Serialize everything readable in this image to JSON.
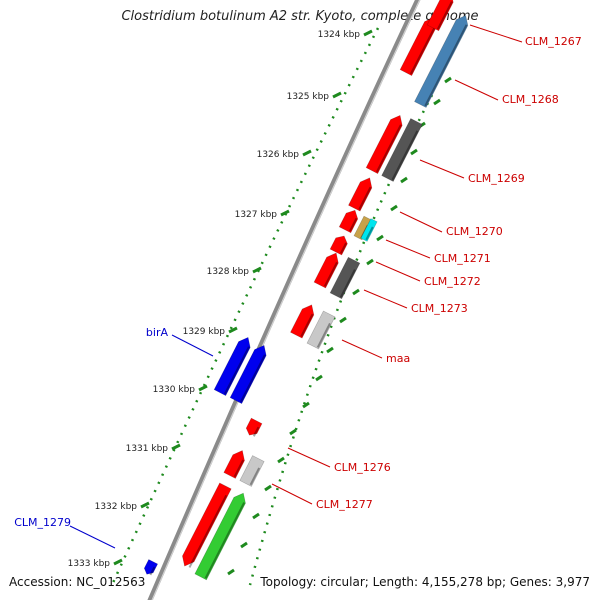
{
  "title": "Clostridium botulinum A2 str. Kyoto, complete genome",
  "footer": {
    "accession": "Accession: NC_012563",
    "summary": "Topology: circular; Length: 4,155,278 bp; Genes: 3,977"
  },
  "colors": {
    "backbone": "#8a8a8a",
    "ticks": "#1e8a1e",
    "red_gene": "#ff0000",
    "blue_gene": "#0000ee",
    "steelblue_gene": "#4682b4",
    "dark_gray_gene": "#555555",
    "light_gray_gene": "#c8c8c8",
    "green_gene": "#33cc33",
    "cyan_gene": "#00e5ee",
    "tan_gene": "#c8a24a",
    "label_red": "#cc0000",
    "label_blue": "#0000cc"
  },
  "ticks": [
    "1324 kbp",
    "1325 kbp",
    "1326 kbp",
    "1327 kbp",
    "1328 kbp",
    "1329 kbp",
    "1330 kbp",
    "1331 kbp",
    "1332 kbp",
    "1333 kbp"
  ],
  "labels": [
    {
      "text": "CLM_1267",
      "color": "red"
    },
    {
      "text": "CLM_1268",
      "color": "red"
    },
    {
      "text": "CLM_1269",
      "color": "red"
    },
    {
      "text": "CLM_1270",
      "color": "red"
    },
    {
      "text": "CLM_1271",
      "color": "red"
    },
    {
      "text": "CLM_1272",
      "color": "red"
    },
    {
      "text": "CLM_1273",
      "color": "red"
    },
    {
      "text": "maa",
      "color": "red"
    },
    {
      "text": "CLM_1276",
      "color": "red"
    },
    {
      "text": "CLM_1277",
      "color": "red"
    },
    {
      "text": "birA",
      "color": "blue"
    },
    {
      "text": "CLM_1279",
      "color": "blue"
    }
  ]
}
